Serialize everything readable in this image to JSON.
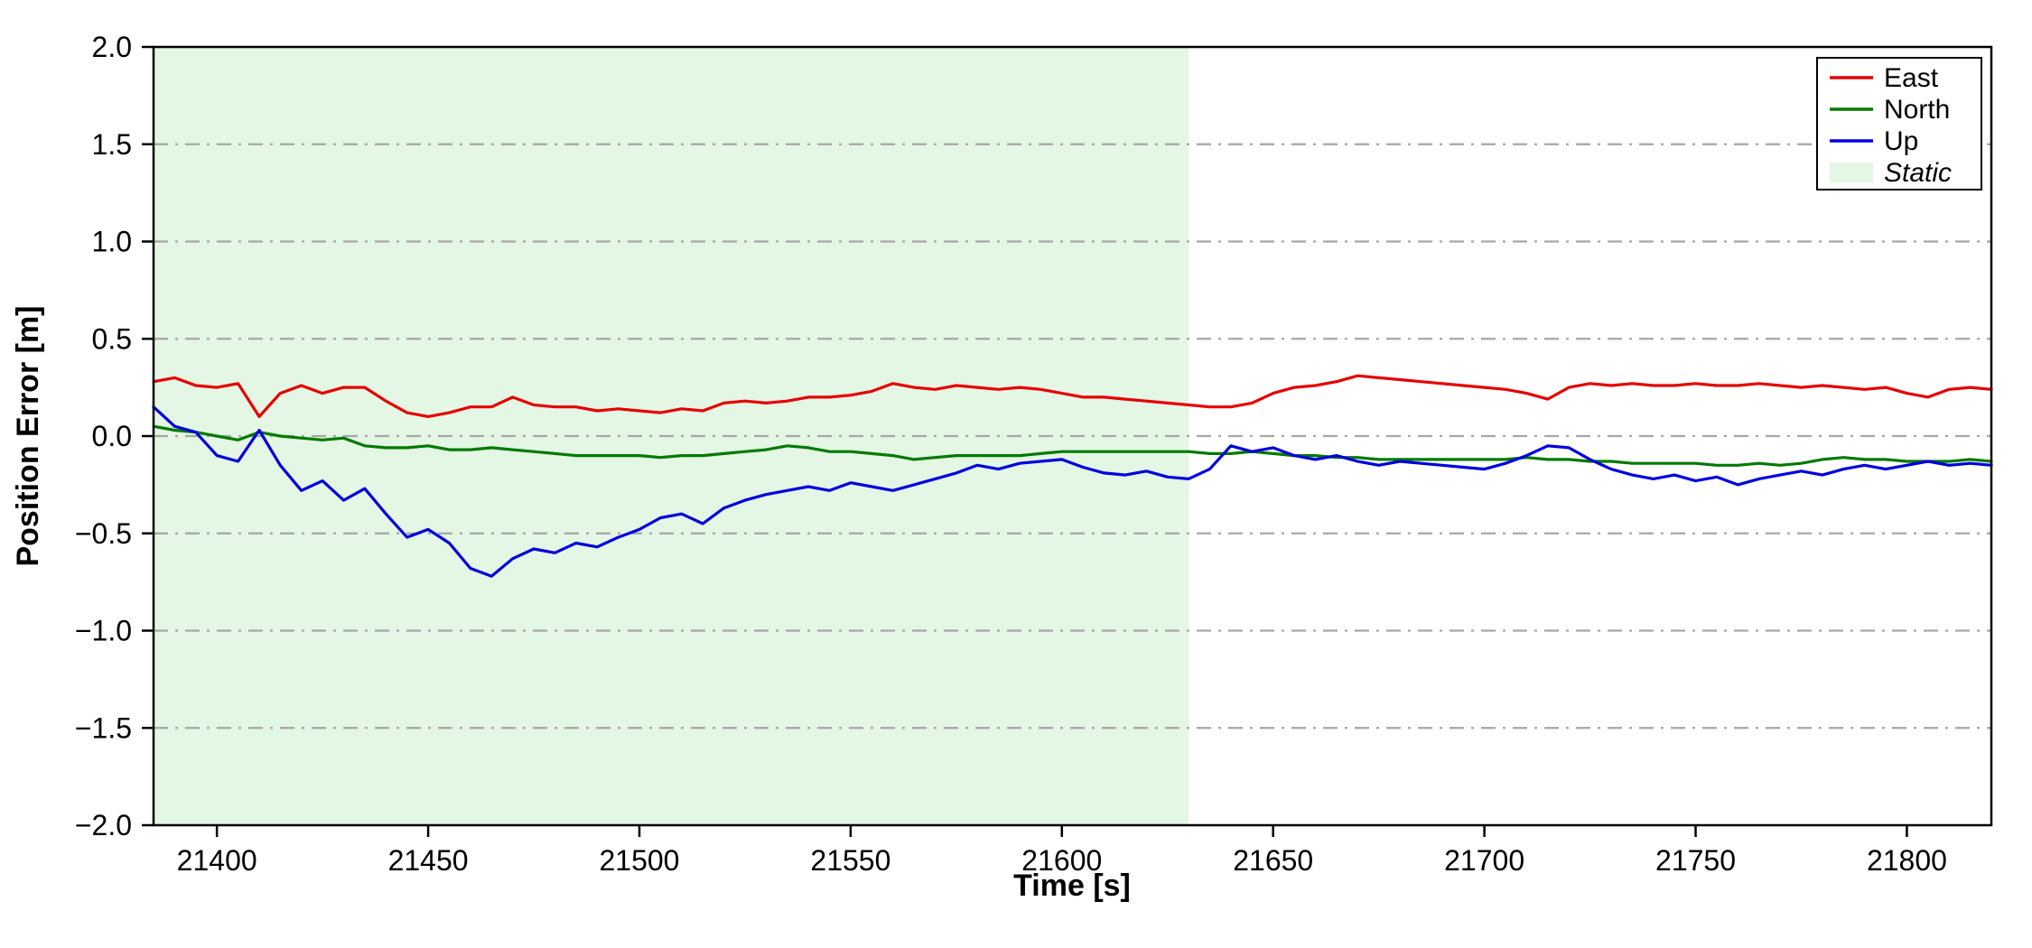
{
  "figure": {
    "background": "#ffffff"
  },
  "chart_data": {
    "type": "line",
    "title": "",
    "xlabel": "Time [s]",
    "ylabel": "Position Error [m]",
    "xlim": [
      21385,
      21820
    ],
    "ylim": [
      -2.0,
      2.0
    ],
    "xticks": [
      21400,
      21450,
      21500,
      21550,
      21600,
      21650,
      21700,
      21750,
      21800
    ],
    "yticks": [
      -2.0,
      -1.5,
      -1.0,
      -0.5,
      0.0,
      0.5,
      1.0,
      1.5,
      2.0
    ],
    "grid": "horizontal-dash-dot",
    "legend_position": "upper-right",
    "colors": {
      "east": "#e60000",
      "north": "#007a00",
      "up": "#0000dd",
      "static_region": "#e4f6e4",
      "grid": "#a6a6a6",
      "axes": "#000000"
    },
    "static_region": {
      "label": "Static",
      "x_start": 21385,
      "x_end": 21630
    },
    "x": [
      21385,
      21390,
      21395,
      21400,
      21405,
      21410,
      21415,
      21420,
      21425,
      21430,
      21435,
      21440,
      21445,
      21450,
      21455,
      21460,
      21465,
      21470,
      21475,
      21480,
      21485,
      21490,
      21495,
      21500,
      21505,
      21510,
      21515,
      21520,
      21525,
      21530,
      21535,
      21540,
      21545,
      21550,
      21555,
      21560,
      21565,
      21570,
      21575,
      21580,
      21585,
      21590,
      21595,
      21600,
      21605,
      21610,
      21615,
      21620,
      21625,
      21630,
      21635,
      21640,
      21645,
      21650,
      21655,
      21660,
      21665,
      21670,
      21675,
      21680,
      21685,
      21690,
      21695,
      21700,
      21705,
      21710,
      21715,
      21720,
      21725,
      21730,
      21735,
      21740,
      21745,
      21750,
      21755,
      21760,
      21765,
      21770,
      21775,
      21780,
      21785,
      21790,
      21795,
      21800,
      21805,
      21810,
      21815,
      21820
    ],
    "series": [
      {
        "name": "East",
        "color": "#e60000",
        "values": [
          0.28,
          0.3,
          0.26,
          0.25,
          0.27,
          0.1,
          0.22,
          0.26,
          0.22,
          0.25,
          0.25,
          0.18,
          0.12,
          0.1,
          0.12,
          0.15,
          0.15,
          0.2,
          0.16,
          0.15,
          0.15,
          0.13,
          0.14,
          0.13,
          0.12,
          0.14,
          0.13,
          0.17,
          0.18,
          0.17,
          0.18,
          0.2,
          0.2,
          0.21,
          0.23,
          0.27,
          0.25,
          0.24,
          0.26,
          0.25,
          0.24,
          0.25,
          0.24,
          0.22,
          0.2,
          0.2,
          0.19,
          0.18,
          0.17,
          0.16,
          0.15,
          0.15,
          0.17,
          0.22,
          0.25,
          0.26,
          0.28,
          0.31,
          0.3,
          0.29,
          0.28,
          0.27,
          0.26,
          0.25,
          0.24,
          0.22,
          0.19,
          0.25,
          0.27,
          0.26,
          0.27,
          0.26,
          0.26,
          0.27,
          0.26,
          0.26,
          0.27,
          0.26,
          0.25,
          0.26,
          0.25,
          0.24,
          0.25,
          0.22,
          0.2,
          0.24,
          0.25,
          0.24
        ]
      },
      {
        "name": "North",
        "color": "#007a00",
        "values": [
          0.05,
          0.03,
          0.02,
          0.0,
          -0.02,
          0.02,
          0.0,
          -0.01,
          -0.02,
          -0.01,
          -0.05,
          -0.06,
          -0.06,
          -0.05,
          -0.07,
          -0.07,
          -0.06,
          -0.07,
          -0.08,
          -0.09,
          -0.1,
          -0.1,
          -0.1,
          -0.1,
          -0.11,
          -0.1,
          -0.1,
          -0.09,
          -0.08,
          -0.07,
          -0.05,
          -0.06,
          -0.08,
          -0.08,
          -0.09,
          -0.1,
          -0.12,
          -0.11,
          -0.1,
          -0.1,
          -0.1,
          -0.1,
          -0.09,
          -0.08,
          -0.08,
          -0.08,
          -0.08,
          -0.08,
          -0.08,
          -0.08,
          -0.09,
          -0.09,
          -0.08,
          -0.09,
          -0.1,
          -0.1,
          -0.11,
          -0.11,
          -0.12,
          -0.12,
          -0.12,
          -0.12,
          -0.12,
          -0.12,
          -0.12,
          -0.11,
          -0.12,
          -0.12,
          -0.13,
          -0.13,
          -0.14,
          -0.14,
          -0.14,
          -0.14,
          -0.15,
          -0.15,
          -0.14,
          -0.15,
          -0.14,
          -0.12,
          -0.11,
          -0.12,
          -0.12,
          -0.13,
          -0.13,
          -0.13,
          -0.12,
          -0.13
        ]
      },
      {
        "name": "Up",
        "color": "#0000dd",
        "values": [
          0.15,
          0.05,
          0.02,
          -0.1,
          -0.13,
          0.03,
          -0.15,
          -0.28,
          -0.23,
          -0.33,
          -0.27,
          -0.4,
          -0.52,
          -0.48,
          -0.55,
          -0.68,
          -0.72,
          -0.63,
          -0.58,
          -0.6,
          -0.55,
          -0.57,
          -0.52,
          -0.48,
          -0.42,
          -0.4,
          -0.45,
          -0.37,
          -0.33,
          -0.3,
          -0.28,
          -0.26,
          -0.28,
          -0.24,
          -0.26,
          -0.28,
          -0.25,
          -0.22,
          -0.19,
          -0.15,
          -0.17,
          -0.14,
          -0.13,
          -0.12,
          -0.16,
          -0.19,
          -0.2,
          -0.18,
          -0.21,
          -0.22,
          -0.17,
          -0.05,
          -0.08,
          -0.06,
          -0.1,
          -0.12,
          -0.1,
          -0.13,
          -0.15,
          -0.13,
          -0.14,
          -0.15,
          -0.16,
          -0.17,
          -0.14,
          -0.1,
          -0.05,
          -0.06,
          -0.12,
          -0.17,
          -0.2,
          -0.22,
          -0.2,
          -0.23,
          -0.21,
          -0.25,
          -0.22,
          -0.2,
          -0.18,
          -0.2,
          -0.17,
          -0.15,
          -0.17,
          -0.15,
          -0.13,
          -0.15,
          -0.14,
          -0.15
        ]
      }
    ],
    "legend": [
      {
        "label": "East",
        "type": "line",
        "color": "#e60000",
        "italic": false
      },
      {
        "label": "North",
        "type": "line",
        "color": "#007a00",
        "italic": false
      },
      {
        "label": "Up",
        "type": "line",
        "color": "#0000dd",
        "italic": false
      },
      {
        "label": "Static",
        "type": "patch",
        "color": "#e4f6e4",
        "italic": true
      }
    ]
  }
}
